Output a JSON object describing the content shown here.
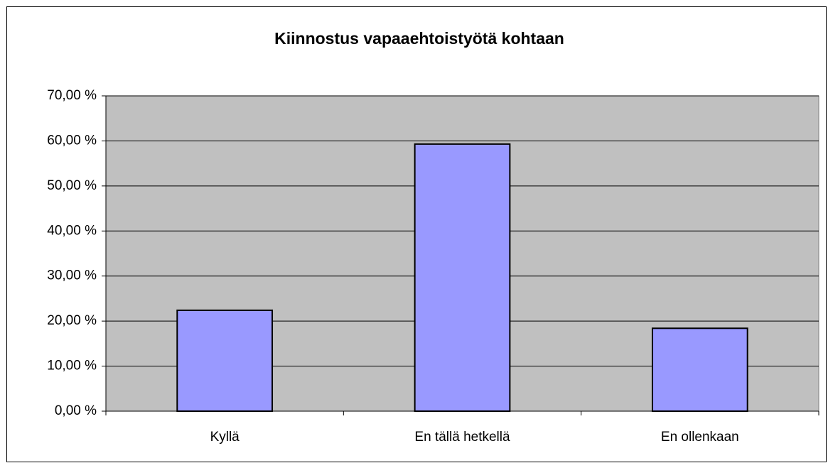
{
  "chart_data": {
    "type": "bar",
    "title": "Kiinnostus vapaaehtoistyötä kohtaan",
    "categories": [
      "Kyllä",
      "En tällä hetkellä",
      "En ollenkaan"
    ],
    "values": [
      22.4,
      59.3,
      18.4
    ],
    "color": "#9999ff",
    "ylim": [
      0,
      70
    ],
    "yticks": [
      {
        "value": 0,
        "label": "0,00 %"
      },
      {
        "value": 10,
        "label": "10,00 %"
      },
      {
        "value": 20,
        "label": "20,00 %"
      },
      {
        "value": 30,
        "label": "30,00 %"
      },
      {
        "value": 40,
        "label": "40,00 %"
      },
      {
        "value": 50,
        "label": "50,00 %"
      },
      {
        "value": 60,
        "label": "60,00 %"
      },
      {
        "value": 70,
        "label": "70,00 %"
      }
    ],
    "grid": true
  }
}
